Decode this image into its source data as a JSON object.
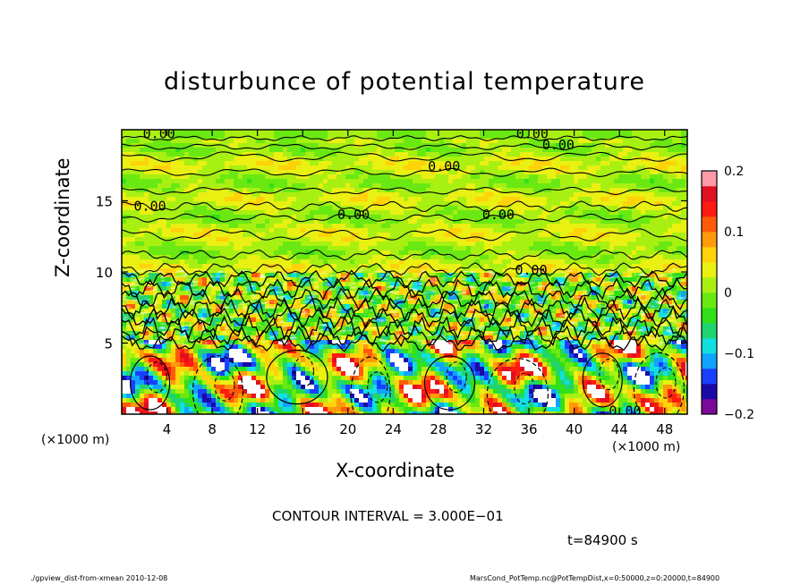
{
  "chart_data": {
    "type": "heatmap",
    "title": "disturbunce of potential temperature",
    "xlabel": "X-coordinate",
    "ylabel": "Z-coordinate",
    "x_unit_label": "(×1000 m)",
    "y_unit_label": "(×1000 m)",
    "xlim": [
      0,
      50
    ],
    "ylim": [
      0,
      20
    ],
    "x_ticks": [
      4,
      8,
      12,
      16,
      20,
      24,
      28,
      32,
      36,
      40,
      44,
      48
    ],
    "y_ticks": [
      5,
      10,
      15
    ],
    "colorbar": {
      "range": [
        -0.2,
        0.2
      ],
      "ticks": [
        {
          "value": 0.2,
          "label": "0.2"
        },
        {
          "value": 0.1,
          "label": "0.1"
        },
        {
          "value": 0,
          "label": "0"
        },
        {
          "value": -0.1,
          "label": "−0.1"
        },
        {
          "value": -0.2,
          "label": "−0.2"
        }
      ],
      "colors": [
        "#7a0a9a",
        "#1a0aa8",
        "#1a40ff",
        "#12a2ff",
        "#12e0e0",
        "#20d470",
        "#30e018",
        "#6ae812",
        "#a8f012",
        "#eaf012",
        "#ffd20a",
        "#ff9a0a",
        "#ff5a0a",
        "#ff1a12",
        "#e01020",
        "#ff9aa8"
      ]
    },
    "contour_labels": [
      {
        "text": "0.00",
        "x": 3.3,
        "z": 19.7
      },
      {
        "text": "0.00",
        "x": 36.3,
        "z": 19.7
      },
      {
        "text": "0.00",
        "x": 38.6,
        "z": 18.9
      },
      {
        "text": "0.00",
        "x": 28.5,
        "z": 17.4
      },
      {
        "text": "0.00",
        "x": 2.5,
        "z": 14.6
      },
      {
        "text": "0.00",
        "x": 20.5,
        "z": 14.0
      },
      {
        "text": "0.00",
        "x": 33.3,
        "z": 14.0
      },
      {
        "text": "0.00",
        "x": 36.2,
        "z": 10.1
      },
      {
        "text": "0.00",
        "x": 44.5,
        "z": 0.2
      }
    ],
    "contour_interval_text": "CONTOUR INTERVAL = 3.000E−01",
    "time_text": "t=84900 s"
  },
  "footer": {
    "left": "./gpview_dist-from-xmean   2010-12-08",
    "right": "MarsCond_PotTemp.nc@PotTempDist,x=0:50000,z=0:20000,t=84900"
  },
  "colors": {
    "frame": "#000000",
    "background": "#ffffff"
  }
}
